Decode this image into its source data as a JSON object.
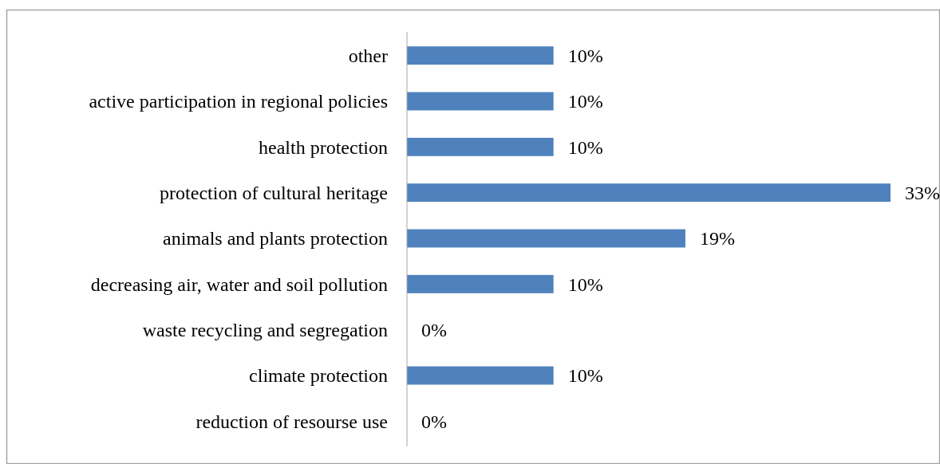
{
  "chart_data": {
    "type": "bar",
    "orientation": "horizontal",
    "categories": [
      "other",
      "active participation in regional policies",
      "health protection",
      "protection of cultural heritage",
      "animals and plants protection",
      "decreasing air, water and soil pollution",
      "waste recycling and segregation",
      "climate protection",
      "reduction of resourse use"
    ],
    "values": [
      10,
      10,
      10,
      33,
      19,
      10,
      0,
      10,
      0
    ],
    "value_labels": [
      "10%",
      "10%",
      "10%",
      "33%",
      "19%",
      "10%",
      "0%",
      "10%",
      "0%"
    ],
    "color": "#4f81bd"
  }
}
